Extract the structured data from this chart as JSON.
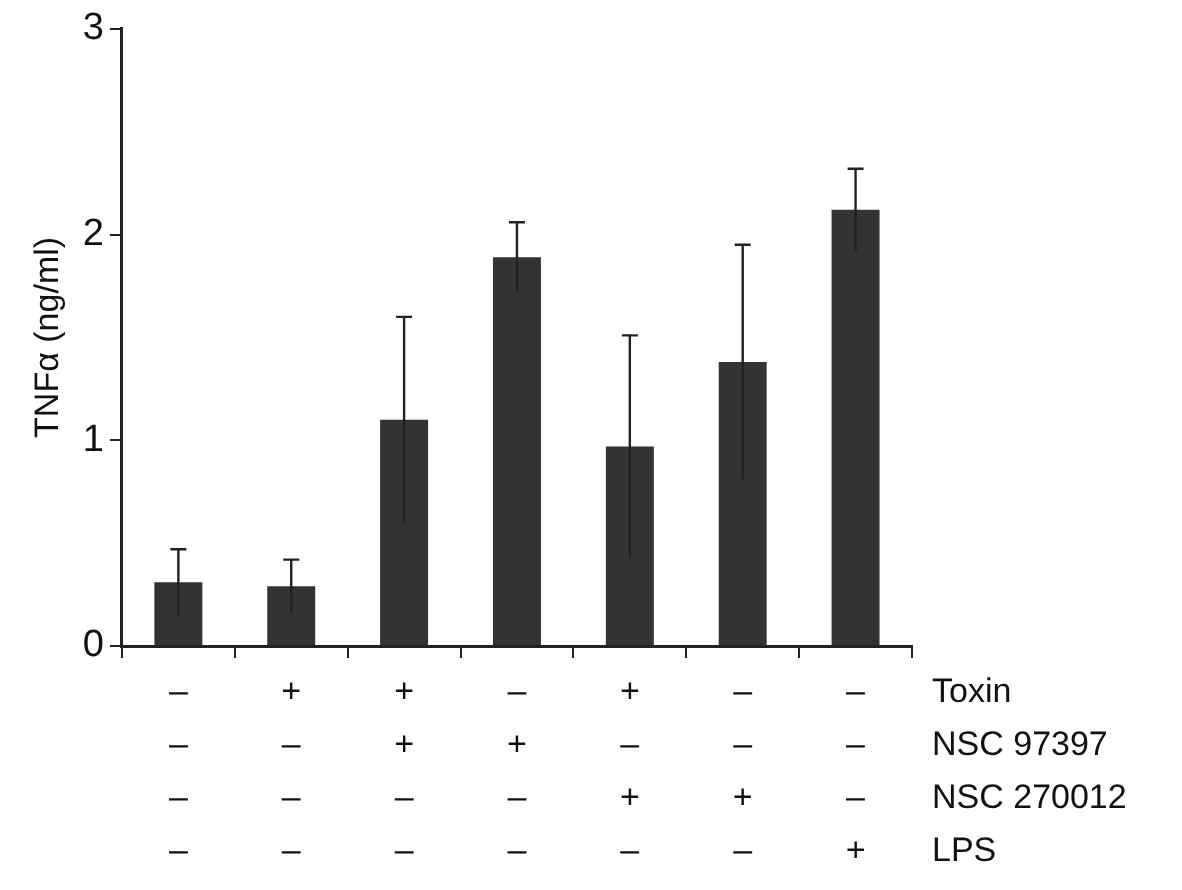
{
  "chart_data": {
    "type": "bar",
    "ylabel": "TNFα (ng/ml)",
    "categories": [
      "–\n–\n–\n–",
      "+\n–\n–\n–",
      "+\n+\n–\n–",
      "–\n+\n–\n–",
      "+\n–\n+\n–",
      "–\n–\n+\n–",
      "–\n–\n–\n+"
    ],
    "values": [
      0.31,
      0.29,
      1.1,
      1.89,
      0.97,
      1.38,
      2.12
    ],
    "errors": [
      0.16,
      0.13,
      0.5,
      0.17,
      0.54,
      0.57,
      0.2
    ],
    "color": "#333333",
    "ylim": [
      0,
      3
    ],
    "yticks": [
      0,
      1,
      2,
      3
    ],
    "grid": false,
    "legend": false,
    "annotations": [
      "Toxin",
      "NSC 97397",
      "NSC 270012",
      "LPS"
    ]
  }
}
